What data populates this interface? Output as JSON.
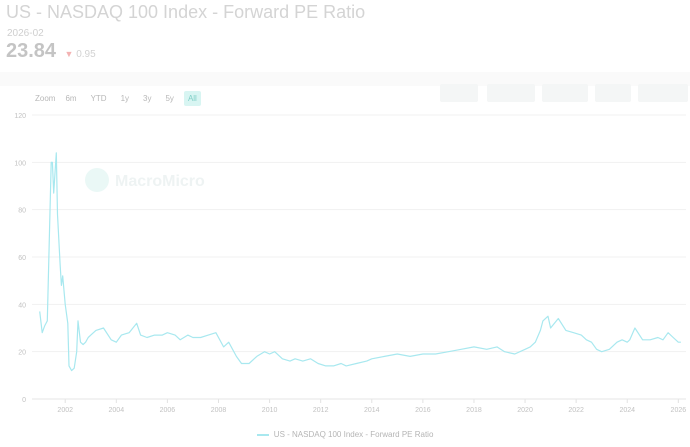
{
  "header": {
    "title": "US - NASDAQ 100 Index - Forward PE Ratio",
    "date": "2026-02",
    "value": "23.84",
    "change": "0.95",
    "change_arrow": "▼"
  },
  "zoom": {
    "label": "Zoom",
    "buttons": [
      "6m",
      "YTD",
      "1y",
      "3y",
      "5y",
      "All"
    ],
    "active": "All"
  },
  "watermark": "MacroMicro",
  "colors": {
    "line": "#a8e8ef",
    "grid": "#f1f1f1",
    "accent": "#7fcfc7",
    "down": "#f3b2b2"
  },
  "chart_data": {
    "type": "line",
    "legend": "US - NASDAQ 100 Index - Forward PE Ratio",
    "x_ticks": [
      "2002",
      "2004",
      "2006",
      "2008",
      "2010",
      "2012",
      "2014",
      "2016",
      "2018",
      "2020",
      "2022",
      "2024",
      "2026"
    ],
    "y_ticks": [
      0,
      20,
      40,
      60,
      80,
      100,
      120
    ],
    "ylim": [
      0,
      120
    ],
    "xlim": [
      2000.7,
      2026.3
    ],
    "grid": true,
    "legend_position": "bottom",
    "series": [
      {
        "name": "US - NASDAQ 100 Index - Forward PE Ratio",
        "x": [
          2001.0,
          2001.1,
          2001.2,
          2001.3,
          2001.45,
          2001.5,
          2001.55,
          2001.65,
          2001.7,
          2001.8,
          2001.85,
          2001.9,
          2002.0,
          2002.1,
          2002.15,
          2002.25,
          2002.35,
          2002.45,
          2002.5,
          2002.6,
          2002.7,
          2002.8,
          2002.9,
          2003.0,
          2003.2,
          2003.5,
          2003.8,
          2004.0,
          2004.2,
          2004.5,
          2004.8,
          2004.95,
          2005.2,
          2005.5,
          2005.8,
          2006.0,
          2006.3,
          2006.5,
          2006.8,
          2007.0,
          2007.3,
          2007.6,
          2007.9,
          2008.2,
          2008.4,
          2008.7,
          2008.9,
          2009.2,
          2009.5,
          2009.8,
          2010.0,
          2010.2,
          2010.5,
          2010.8,
          2011.0,
          2011.3,
          2011.6,
          2011.9,
          2012.2,
          2012.5,
          2012.8,
          2013.0,
          2013.4,
          2013.8,
          2014.0,
          2014.5,
          2015.0,
          2015.5,
          2016.0,
          2016.5,
          2017.0,
          2017.5,
          2018.0,
          2018.5,
          2018.9,
          2019.2,
          2019.6,
          2020.0,
          2020.2,
          2020.4,
          2020.6,
          2020.7,
          2020.9,
          2021.0,
          2021.3,
          2021.6,
          2021.9,
          2022.2,
          2022.4,
          2022.6,
          2022.8,
          2023.0,
          2023.3,
          2023.6,
          2023.8,
          2024.0,
          2024.1,
          2024.3,
          2024.6,
          2024.9,
          2025.2,
          2025.4,
          2025.6,
          2025.8,
          2026.0,
          2026.1
        ],
        "y": [
          37,
          28,
          31,
          33,
          100,
          100,
          87,
          104,
          78,
          57,
          48,
          52,
          40,
          32,
          14,
          12,
          13,
          20,
          33,
          24,
          23,
          24,
          26,
          27,
          29,
          30,
          25,
          24,
          27,
          28,
          32,
          27,
          26,
          27,
          27,
          28,
          27,
          25,
          27,
          26,
          26,
          27,
          28,
          22,
          24,
          18,
          15,
          15,
          18,
          20,
          19,
          20,
          17,
          16,
          17,
          16,
          17,
          15,
          14,
          14,
          15,
          14,
          15,
          16,
          17,
          18,
          19,
          18,
          19,
          19,
          20,
          21,
          22,
          21,
          22,
          20,
          19,
          21,
          22,
          24,
          29,
          33,
          35,
          30,
          34,
          29,
          28,
          27,
          25,
          24,
          21,
          20,
          21,
          24,
          25,
          24,
          25,
          30,
          25,
          25,
          26,
          25,
          28,
          26,
          24,
          24
        ]
      }
    ]
  }
}
